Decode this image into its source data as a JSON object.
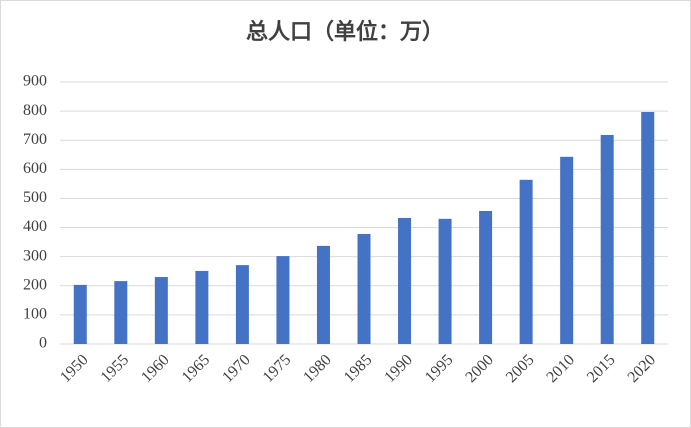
{
  "chart_data": {
    "type": "bar",
    "title": "总人口（单位：万）",
    "categories": [
      "1950",
      "1955",
      "1960",
      "1965",
      "1970",
      "1975",
      "1980",
      "1985",
      "1990",
      "1995",
      "2000",
      "2005",
      "2010",
      "2015",
      "2020"
    ],
    "values": [
      203,
      216,
      230,
      251,
      271,
      302,
      337,
      378,
      433,
      430,
      457,
      564,
      643,
      718,
      797
    ],
    "color": "#4472c4",
    "ylim": [
      0,
      900
    ],
    "yticks": [
      0,
      100,
      200,
      300,
      400,
      500,
      600,
      700,
      800,
      900
    ],
    "grid": true
  }
}
